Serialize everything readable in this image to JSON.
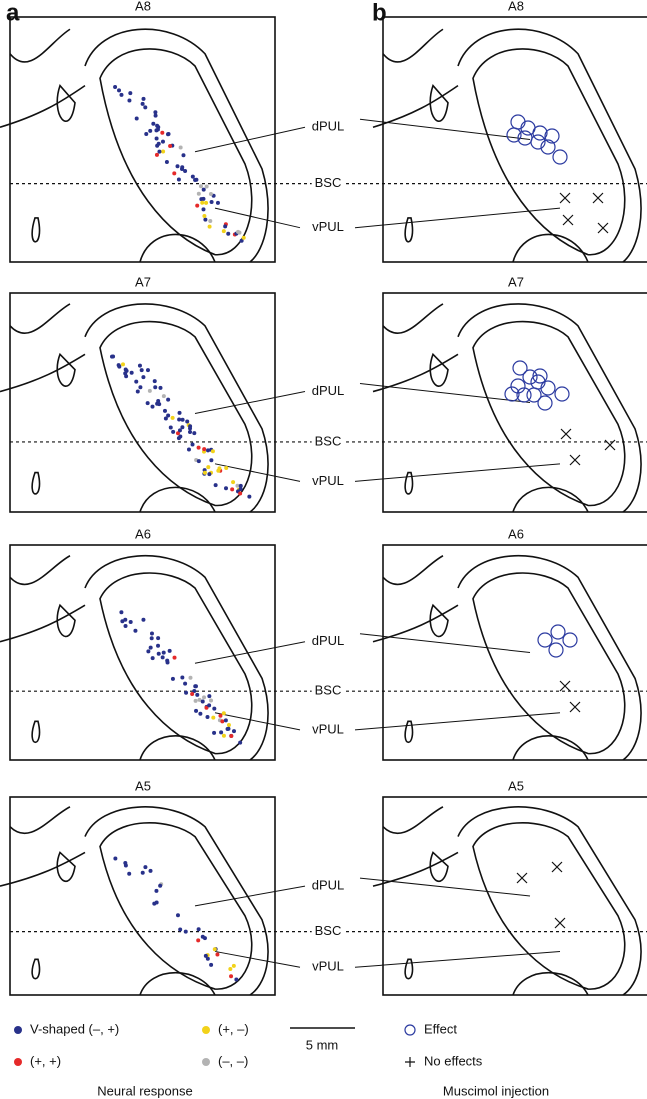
{
  "panels": [
    {
      "label": "a"
    },
    {
      "label": "b"
    }
  ],
  "rows": [
    {
      "section": "A8",
      "labels": [
        "dPUL",
        "BSC",
        "vPUL"
      ]
    },
    {
      "section": "A7",
      "labels": [
        "dPUL",
        "BSC",
        "vPUL"
      ]
    },
    {
      "section": "A6",
      "labels": [
        "dPUL",
        "BSC",
        "vPUL"
      ]
    },
    {
      "section": "A5",
      "labels": [
        "dPUL",
        "BSC",
        "vPUL"
      ]
    }
  ],
  "legend": {
    "neural": {
      "items": [
        "V-shaped (–, +)",
        "(+, –)",
        "(+, +)",
        "(–, –)"
      ],
      "title": "Neural response"
    },
    "scale": "5 mm",
    "muscimol": {
      "items": [
        "Effect",
        "No effects"
      ],
      "title": "Muscimol injection"
    }
  }
}
